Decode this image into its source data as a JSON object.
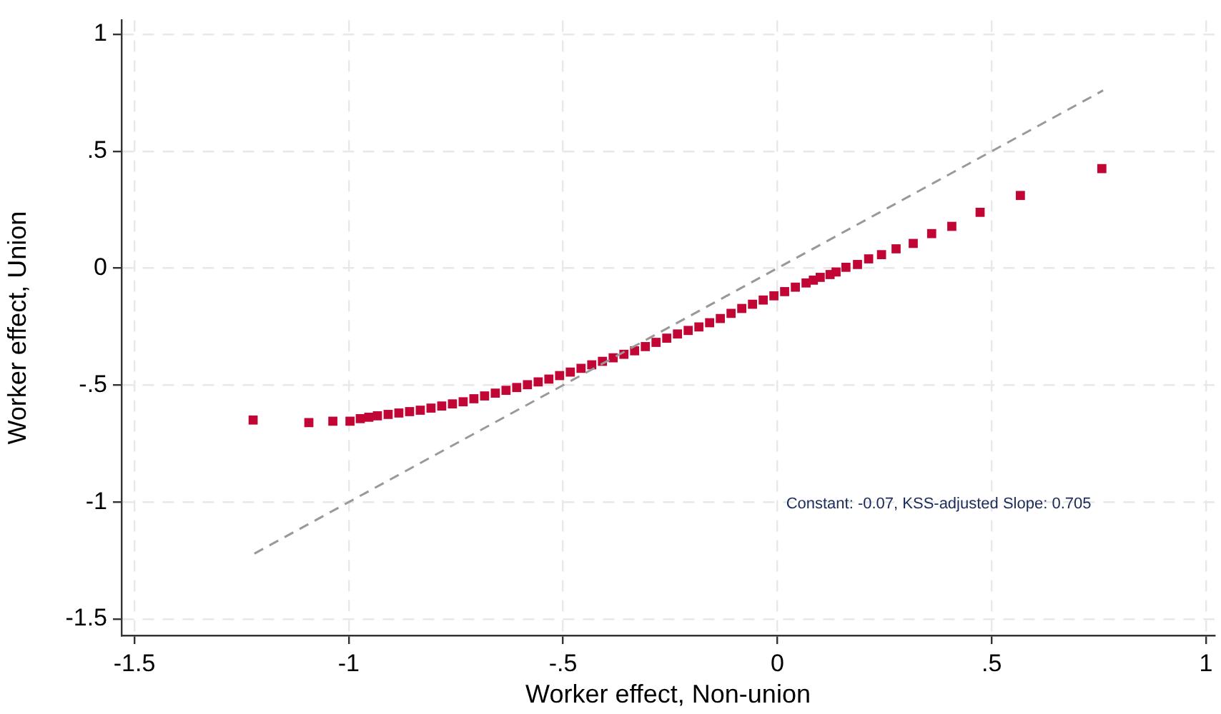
{
  "chart_data": {
    "type": "scatter",
    "xlabel": "Worker effect, Non-union",
    "ylabel": "Worker effect, Union",
    "xlim": [
      -1.53,
      1.02
    ],
    "ylim": [
      -1.57,
      1.06
    ],
    "xticks": [
      {
        "value": -1.5,
        "label": "-1.5"
      },
      {
        "value": -1,
        "label": "-1"
      },
      {
        "value": -0.5,
        "label": "-.5"
      },
      {
        "value": 0,
        "label": "0"
      },
      {
        "value": 0.5,
        "label": ".5"
      },
      {
        "value": 1,
        "label": "1"
      }
    ],
    "yticks": [
      {
        "value": -1.5,
        "label": "-1.5"
      },
      {
        "value": -1,
        "label": "-1"
      },
      {
        "value": -0.5,
        "label": "-.5"
      },
      {
        "value": 0,
        "label": "0"
      },
      {
        "value": 0.5,
        "label": ".5"
      },
      {
        "value": 1,
        "label": "1"
      }
    ],
    "grid": true,
    "legend": false,
    "annotations": [
      "Constant: -0.07, KSS-adjusted Slope: 0.705"
    ],
    "series": [
      {
        "marker": "square",
        "color": "#c10534",
        "x": [
          -1.223,
          -1.093,
          -1.037,
          -0.997,
          -0.973,
          -0.953,
          -0.933,
          -0.908,
          -0.883,
          -0.858,
          -0.833,
          -0.808,
          -0.783,
          -0.758,
          -0.733,
          -0.708,
          -0.683,
          -0.658,
          -0.633,
          -0.608,
          -0.583,
          -0.558,
          -0.533,
          -0.508,
          -0.483,
          -0.458,
          -0.433,
          -0.408,
          -0.383,
          -0.358,
          -0.333,
          -0.308,
          -0.283,
          -0.258,
          -0.233,
          -0.208,
          -0.183,
          -0.158,
          -0.133,
          -0.108,
          -0.083,
          -0.058,
          -0.033,
          -0.008,
          0.017,
          0.042,
          0.067,
          0.084,
          0.1,
          0.123,
          0.137,
          0.16,
          0.187,
          0.213,
          0.243,
          0.277,
          0.317,
          0.36,
          0.407,
          0.473,
          0.567,
          0.757
        ],
        "values": [
          -0.649,
          -0.66,
          -0.654,
          -0.654,
          -0.643,
          -0.637,
          -0.631,
          -0.625,
          -0.619,
          -0.613,
          -0.607,
          -0.598,
          -0.589,
          -0.58,
          -0.571,
          -0.558,
          -0.546,
          -0.534,
          -0.522,
          -0.51,
          -0.498,
          -0.486,
          -0.474,
          -0.459,
          -0.444,
          -0.428,
          -0.413,
          -0.398,
          -0.383,
          -0.368,
          -0.353,
          -0.335,
          -0.317,
          -0.299,
          -0.281,
          -0.266,
          -0.251,
          -0.233,
          -0.215,
          -0.193,
          -0.172,
          -0.154,
          -0.136,
          -0.118,
          -0.1,
          -0.081,
          -0.063,
          -0.051,
          -0.039,
          -0.027,
          -0.016,
          0.004,
          0.016,
          0.04,
          0.058,
          0.083,
          0.106,
          0.148,
          0.179,
          0.239,
          0.311,
          0.426
        ]
      },
      {
        "type": "line",
        "line_style": "dashed",
        "marker": "none",
        "color": "#999999",
        "x": [
          -1.22,
          0.76
        ],
        "values": [
          -1.22,
          0.76
        ]
      }
    ]
  }
}
